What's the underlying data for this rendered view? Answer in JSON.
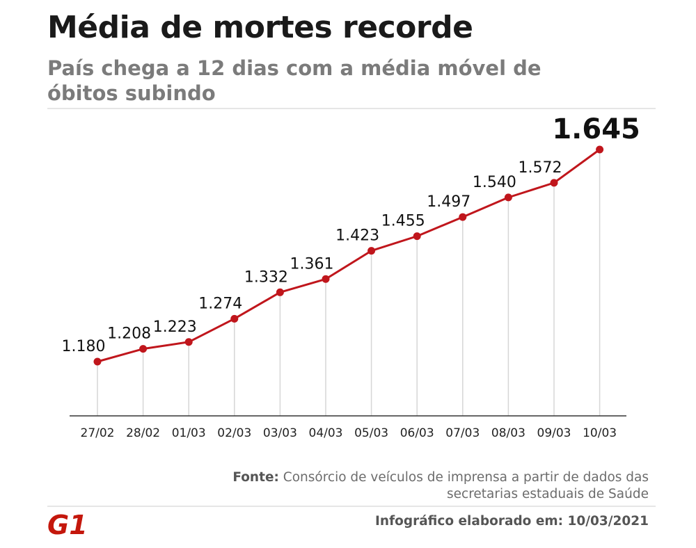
{
  "header": {
    "title": "Média de mortes recorde",
    "subtitle": "País chega a 12 dias com a média móvel de óbitos subindo"
  },
  "footer": {
    "source_label": "Fonte:",
    "source_text": "Consórcio de veículos de imprensa a partir de dados das secretarias estaduais de Saúde",
    "credit": "Infográfico elaborado em: 10/03/2021",
    "logo_text": "G1"
  },
  "colors": {
    "line": "#c0161c",
    "logo": "#c4170c",
    "gridline": "#d6d6d6",
    "axis": "#333333"
  },
  "chart_data": {
    "type": "line",
    "categories": [
      "27/02",
      "28/02",
      "01/03",
      "02/03",
      "03/03",
      "04/03",
      "05/03",
      "06/03",
      "07/03",
      "08/03",
      "09/03",
      "10/03"
    ],
    "values": [
      1180,
      1208,
      1223,
      1274,
      1332,
      1361,
      1423,
      1455,
      1497,
      1540,
      1572,
      1645
    ],
    "value_labels": [
      "1.180",
      "1.208",
      "1.223",
      "1.274",
      "1.332",
      "1.361",
      "1.423",
      "1.455",
      "1.497",
      "1.540",
      "1.572",
      "1.645"
    ],
    "highlight_index": 11,
    "grid": "vertical drop lines",
    "legend": "none"
  }
}
